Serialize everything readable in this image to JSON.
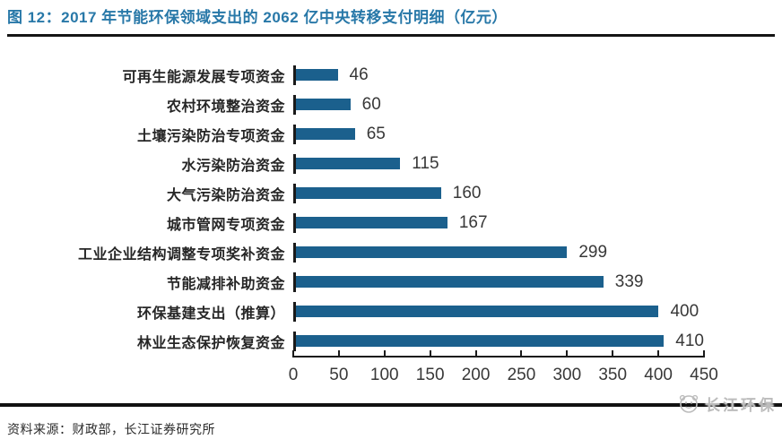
{
  "header": {
    "title": "图 12：2017 年节能环保领域支出的 2062 亿中央转移支付明细（亿元）"
  },
  "chart_data": {
    "type": "bar",
    "orientation": "horizontal",
    "unit": "亿元",
    "categories": [
      "可再生能源发展专项资金",
      "农村环境整治资金",
      "土壤污染防治专项资金",
      "水污染防治资金",
      "大气污染防治资金",
      "城市管网专项资金",
      "工业企业结构调整专项奖补资金",
      "节能减排补助资金",
      "环保基建支出（推算）",
      "林业生态保护恢复资金"
    ],
    "values": [
      46,
      60,
      65,
      115,
      160,
      167,
      299,
      339,
      400,
      410
    ],
    "xlim": [
      0,
      450
    ],
    "x_ticks": [
      0,
      50,
      100,
      150,
      200,
      250,
      300,
      350,
      400,
      450
    ],
    "value_labels_shown": true,
    "grid": false,
    "legend": "none"
  },
  "footer": {
    "source": "资料来源：财政部，长江证券研究所",
    "watermark": "长江环保"
  },
  "colors": {
    "bar": "#1B608D",
    "title": "#2878A8",
    "axis": "#1A1A1A",
    "value_text": "#383838"
  }
}
